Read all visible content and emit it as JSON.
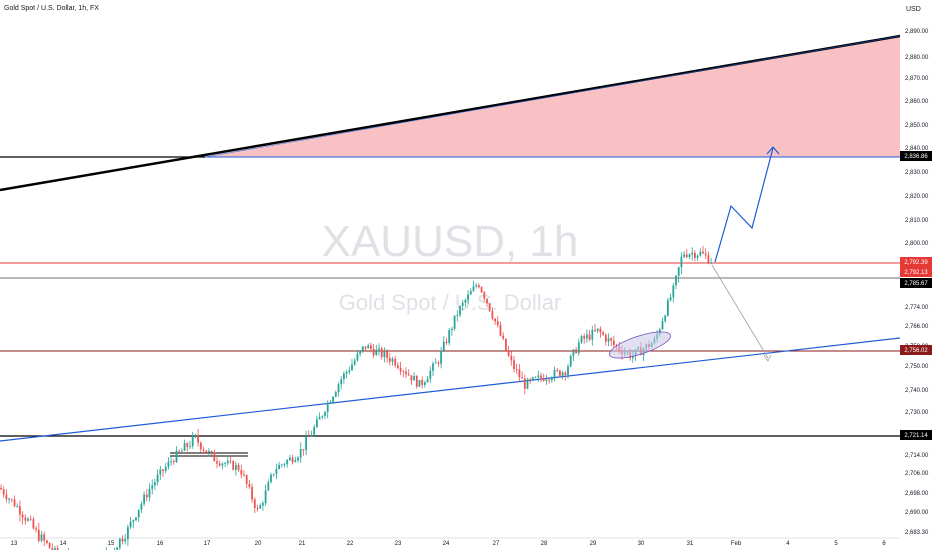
{
  "symbol_title": "Gold Spot / U.S. Dollar, 1h, FX",
  "currency": "USD",
  "watermark": {
    "line1": "XAUUSD, 1h",
    "line2": "Gold Spot / U.S. Dollar"
  },
  "colors": {
    "up": "#26a69a",
    "down": "#ef5350",
    "red_line": "#e53935",
    "blue": "#1e5bd6",
    "black": "#000000",
    "zone_fill": "#f9c1c4",
    "dark_red": "#8b1a1a",
    "grey": "#6e7276"
  },
  "y_axis_labels": [
    "2,890.00",
    "2,880.00",
    "2,870.00",
    "2,860.00",
    "2,850.00",
    "2,840.00",
    "2,830.00",
    "2,820.00",
    "2,810.00",
    "2,800.00",
    "2,792.39",
    "2,785.67",
    "2,774.00",
    "2,766.00",
    "2,758.00",
    "2,750.00",
    "2,740.00",
    "2,730.00",
    "2,721.14",
    "2,714.00",
    "2,706.00",
    "2,698.00",
    "2,690.00",
    "2,683.30"
  ],
  "price_tags": [
    {
      "label": "2,836.86",
      "color": "#000000"
    },
    {
      "label": "2,792.39",
      "color": "#e53935"
    },
    {
      "label": "2,792.13",
      "color": "#e53935"
    },
    {
      "label": "2,785.67",
      "color": "#000000"
    },
    {
      "label": "2,756.02",
      "color": "#8b1a1a"
    },
    {
      "label": "2,721.14",
      "color": "#000000"
    }
  ],
  "x_axis_labels": [
    "13",
    "14",
    "15",
    "16",
    "17",
    "20",
    "21",
    "22",
    "23",
    "24",
    "27",
    "28",
    "29",
    "30",
    "31",
    "Feb",
    "4",
    "5",
    "6"
  ],
  "chart_data": {
    "type": "candlestick",
    "x_tick_labels": [
      "13",
      "14",
      "15",
      "16",
      "17",
      "20",
      "21",
      "22",
      "23",
      "24",
      "27",
      "28",
      "29",
      "30",
      "31",
      "Feb",
      "4",
      "5",
      "6"
    ],
    "y_range": [
      2683.3,
      2895
    ],
    "horizontal_levels": [
      2836.86,
      2792.39,
      2792.13,
      2785.67,
      2756.02,
      2721.14
    ],
    "key_extremes": {
      "low": 2683.3,
      "high_on_31": 2800.5,
      "peak_on_24": 2786
    },
    "projection_up": [
      2792,
      2814,
      2806,
      2841
    ],
    "projection_down_target": 2753
  }
}
